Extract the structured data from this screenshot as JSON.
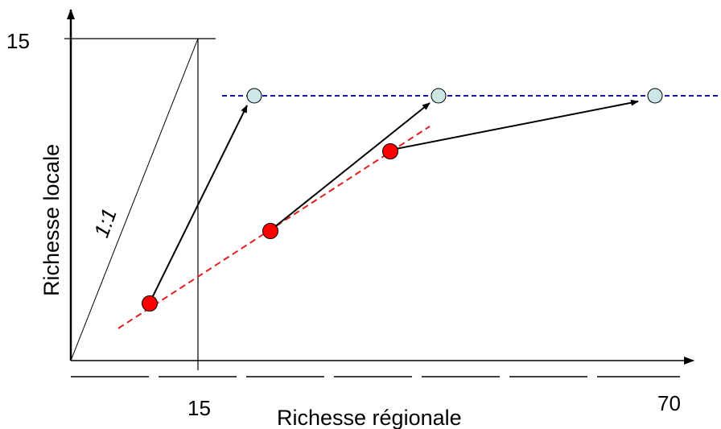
{
  "labels": {
    "y_axis_title": "Richesse locale",
    "x_axis_title": "Richesse régionale",
    "y_tick_15": "15",
    "x_tick_15": "15",
    "x_tick_70": "70",
    "one_to_one": "1:1"
  },
  "colors": {
    "axis": "#000000",
    "local_points": "#ff0000",
    "regional_points": "#cde6e6",
    "saturation_line": "#1a1aa0",
    "trend_line": "#e02020"
  },
  "points": {
    "local": [
      {
        "name": "local-point-1"
      },
      {
        "name": "local-point-2"
      },
      {
        "name": "local-point-3"
      }
    ],
    "regional": [
      {
        "name": "regional-point-1"
      },
      {
        "name": "regional-point-2"
      },
      {
        "name": "regional-point-3"
      }
    ]
  }
}
